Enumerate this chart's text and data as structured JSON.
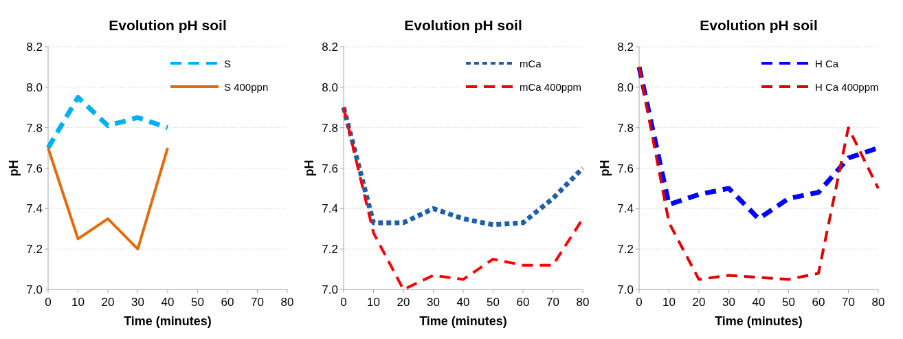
{
  "chart_data": [
    {
      "type": "line",
      "title": "Evolution pH soil",
      "xlabel": "Time (minutes)",
      "ylabel": "pH",
      "x": [
        0,
        10,
        20,
        30,
        40
      ],
      "xlim": [
        0,
        80
      ],
      "xticks": [
        0,
        10,
        20,
        30,
        40,
        50,
        60,
        70,
        80
      ],
      "ylim": [
        7.0,
        8.2
      ],
      "yticks": [
        {
          "value": 7.0,
          "label": "7.0"
        },
        {
          "value": 7.2,
          "label": "7.2"
        },
        {
          "value": 7.4,
          "label": "7.4"
        },
        {
          "value": 7.6,
          "label": "7.6"
        },
        {
          "value": 7.8,
          "label": "7.8"
        },
        {
          "value": 8.0,
          "label": "8.0"
        },
        {
          "value": 8.2,
          "label": "8.2"
        }
      ],
      "grid": "y",
      "legend": "top right",
      "series": [
        {
          "name": "S",
          "color": "#00b0f0",
          "line_style": "dashed",
          "values": [
            7.7,
            7.95,
            7.81,
            7.85,
            7.8
          ]
        },
        {
          "name": "S 400ppn",
          "color": "#e36c09",
          "line_style": "solid",
          "values": [
            7.7,
            7.25,
            7.35,
            7.2,
            7.7
          ]
        }
      ]
    },
    {
      "type": "line",
      "title": "Evolution pH soil",
      "xlabel": "Time (minutes)",
      "ylabel": "pH",
      "x": [
        0,
        10,
        20,
        30,
        40,
        50,
        60,
        70,
        80
      ],
      "xlim": [
        0,
        80
      ],
      "xticks": [
        0,
        10,
        20,
        30,
        40,
        50,
        60,
        70,
        80
      ],
      "ylim": [
        7.0,
        8.2
      ],
      "yticks": [
        {
          "value": 7.0,
          "label": "7.0"
        },
        {
          "value": 7.2,
          "label": "7.2"
        },
        {
          "value": 7.4,
          "label": "7.4"
        },
        {
          "value": 7.6,
          "label": "7.6"
        },
        {
          "value": 7.8,
          "label": "7.8"
        },
        {
          "value": 8.0,
          "label": "8.0"
        },
        {
          "value": 8.2,
          "label": "8.2"
        }
      ],
      "grid": "y",
      "legend": "top right",
      "series": [
        {
          "name": "mCa",
          "color": "#1f5fa8",
          "line_style": "dotted",
          "values": [
            7.9,
            7.33,
            7.33,
            7.4,
            7.35,
            7.32,
            7.33,
            7.45,
            7.6
          ]
        },
        {
          "name": "mCa 400ppm",
          "color": "#ff0000",
          "line_style": "dashed",
          "values": [
            7.9,
            7.28,
            7.0,
            7.07,
            7.05,
            7.15,
            7.12,
            7.12,
            7.35
          ]
        }
      ]
    },
    {
      "type": "line",
      "title": "Evolution pH soil",
      "xlabel": "Time (minutes)",
      "ylabel": "pH",
      "x": [
        0,
        10,
        20,
        30,
        40,
        50,
        60,
        70,
        80
      ],
      "xlim": [
        0,
        80
      ],
      "xticks": [
        0,
        10,
        20,
        30,
        40,
        50,
        60,
        70,
        80
      ],
      "ylim": [
        7.0,
        8.2
      ],
      "yticks": [
        {
          "value": 7.0,
          "label": "7.0"
        },
        {
          "value": 7.2,
          "label": "7.2"
        },
        {
          "value": 7.4,
          "label": "7.4"
        },
        {
          "value": 7.6,
          "label": "7.6"
        },
        {
          "value": 7.8,
          "label": "7.8"
        },
        {
          "value": 8.0,
          "label": "8.0"
        },
        {
          "value": 8.2,
          "label": "8.2"
        }
      ],
      "grid": "y",
      "legend": "top right",
      "series": [
        {
          "name": "H Ca",
          "color": "#0000ff",
          "line_style": "dashed",
          "values": [
            8.1,
            7.42,
            7.47,
            7.5,
            7.35,
            7.45,
            7.48,
            7.65,
            7.7
          ]
        },
        {
          "name": "H Ca 400ppm",
          "color": "#e00000",
          "line_style": "dashed",
          "values": [
            8.1,
            7.33,
            7.05,
            7.07,
            7.06,
            7.05,
            7.08,
            7.8,
            7.5
          ]
        }
      ]
    }
  ]
}
